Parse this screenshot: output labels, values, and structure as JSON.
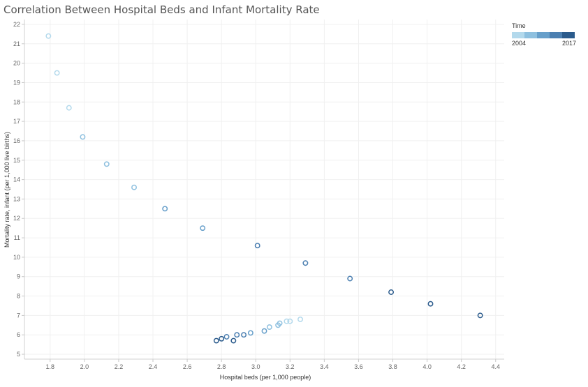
{
  "title": "Correlation Between Hospital Beds and Infant Mortality Rate",
  "legend": {
    "title": "Time",
    "start_label": "2004",
    "end_label": "2017",
    "colors": [
      "#b3d9ec",
      "#8ec0df",
      "#679fca",
      "#4b7fb1",
      "#2b5b8c"
    ]
  },
  "chart_data": {
    "type": "scatter",
    "title": "Correlation Between Hospital Beds and Infant Mortality Rate",
    "xlabel": "Hospital beds (per 1,000 people)",
    "ylabel": "Mortality rate, infant (per 1,000 live births)",
    "xlim": [
      1.65,
      4.45
    ],
    "ylim": [
      4.75,
      22.25
    ],
    "x_ticks": [
      "1.8",
      "2.0",
      "2.2",
      "2.4",
      "2.6",
      "2.8",
      "3.0",
      "3.2",
      "3.4",
      "3.6",
      "3.8",
      "4.0",
      "4.2",
      "4.4"
    ],
    "y_ticks": [
      "5",
      "6",
      "7",
      "8",
      "9",
      "10",
      "11",
      "12",
      "13",
      "14",
      "15",
      "16",
      "17",
      "18",
      "19",
      "20",
      "21",
      "22"
    ],
    "color_legend": "Time",
    "grid": true,
    "points": [
      {
        "x": 1.79,
        "y": 21.4,
        "c": 0
      },
      {
        "x": 1.84,
        "y": 19.5,
        "c": 0
      },
      {
        "x": 1.91,
        "y": 17.7,
        "c": 0
      },
      {
        "x": 1.99,
        "y": 16.2,
        "c": 1
      },
      {
        "x": 2.13,
        "y": 14.8,
        "c": 1
      },
      {
        "x": 2.29,
        "y": 13.6,
        "c": 1
      },
      {
        "x": 2.47,
        "y": 12.5,
        "c": 2
      },
      {
        "x": 2.69,
        "y": 11.5,
        "c": 2
      },
      {
        "x": 3.01,
        "y": 10.6,
        "c": 3
      },
      {
        "x": 3.29,
        "y": 9.7,
        "c": 3
      },
      {
        "x": 3.55,
        "y": 8.9,
        "c": 3
      },
      {
        "x": 3.79,
        "y": 8.2,
        "c": 4
      },
      {
        "x": 4.02,
        "y": 7.6,
        "c": 4
      },
      {
        "x": 4.31,
        "y": 7.0,
        "c": 4
      },
      {
        "x": 3.26,
        "y": 6.8,
        "c": 0
      },
      {
        "x": 3.2,
        "y": 6.7,
        "c": 0
      },
      {
        "x": 3.18,
        "y": 6.7,
        "c": 0
      },
      {
        "x": 3.14,
        "y": 6.6,
        "c": 1
      },
      {
        "x": 3.13,
        "y": 6.5,
        "c": 1
      },
      {
        "x": 3.08,
        "y": 6.4,
        "c": 1
      },
      {
        "x": 3.05,
        "y": 6.2,
        "c": 2
      },
      {
        "x": 2.97,
        "y": 6.1,
        "c": 2
      },
      {
        "x": 2.93,
        "y": 6.0,
        "c": 3
      },
      {
        "x": 2.89,
        "y": 6.0,
        "c": 3
      },
      {
        "x": 2.83,
        "y": 5.9,
        "c": 3
      },
      {
        "x": 2.8,
        "y": 5.8,
        "c": 4
      },
      {
        "x": 2.77,
        "y": 5.7,
        "c": 4
      },
      {
        "x": 2.87,
        "y": 5.7,
        "c": 4
      }
    ]
  }
}
